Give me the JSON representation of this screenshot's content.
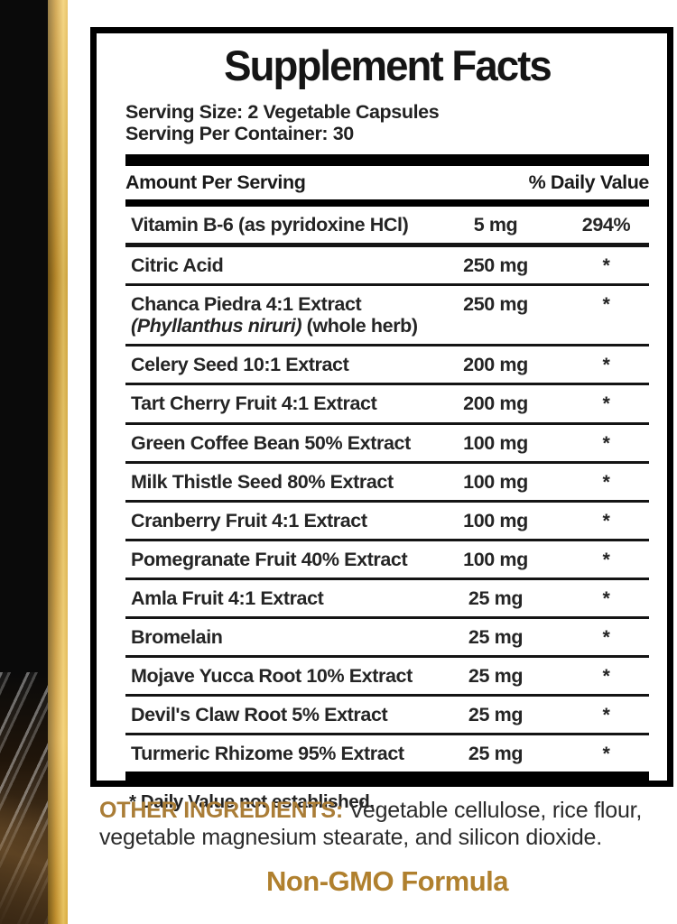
{
  "colors": {
    "gold_label": "#aa7d37",
    "gold_headline": "#b0802e",
    "gold_stripe_bright": "#f2cb63",
    "gold_stripe_dark": "#7c5c17",
    "panel_border": "#000000",
    "strip_black": "#0a0a0a"
  },
  "panel": {
    "title": "Supplement Facts",
    "serving_size": "Serving Size: 2 Vegetable Capsules",
    "serving_per_container": "Serving Per Container: 30",
    "amount_header": "Amount Per Serving",
    "dv_header": "% Daily Value",
    "rows": [
      {
        "name": "Vitamin B-6 (as pyridoxine HCl)",
        "amount": "5 mg",
        "dv": "294%"
      },
      {
        "name": "Citric Acid",
        "amount": "250 mg",
        "dv": "*"
      },
      {
        "name": "Chanca Piedra 4:1 Extract",
        "sub_italic": "(Phyllanthus niruri)",
        "sub_rest": " (whole herb)",
        "amount": "250 mg",
        "dv": "*"
      },
      {
        "name": "Celery Seed 10:1 Extract",
        "amount": "200 mg",
        "dv": "*"
      },
      {
        "name": "Tart Cherry Fruit 4:1 Extract",
        "amount": "200 mg",
        "dv": "*"
      },
      {
        "name": "Green Coffee Bean 50% Extract",
        "amount": "100 mg",
        "dv": "*"
      },
      {
        "name": "Milk Thistle Seed 80% Extract",
        "amount": "100 mg",
        "dv": "*"
      },
      {
        "name": "Cranberry Fruit 4:1 Extract",
        "amount": "100 mg",
        "dv": "*"
      },
      {
        "name": "Pomegranate Fruit 40% Extract",
        "amount": "100 mg",
        "dv": "*"
      },
      {
        "name": "Amla Fruit 4:1 Extract",
        "amount": "25 mg",
        "dv": "*"
      },
      {
        "name": "Bromelain",
        "amount": "25 mg",
        "dv": "*"
      },
      {
        "name": "Mojave Yucca Root 10% Extract",
        "amount": "25 mg",
        "dv": "*"
      },
      {
        "name": "Devil's Claw Root 5% Extract",
        "amount": "25 mg",
        "dv": "*"
      },
      {
        "name": "Turmeric Rhizome 95% Extract",
        "amount": "25 mg",
        "dv": "*"
      }
    ],
    "footnote": "* Daily Value not established."
  },
  "other_ingredients": {
    "label": "OTHER INGREDIENTS:",
    "text": " Vegetable cellulose, rice flour, vegetable magnesium stearate, and silicon dioxide."
  },
  "non_gmo": "Non-GMO Formula"
}
